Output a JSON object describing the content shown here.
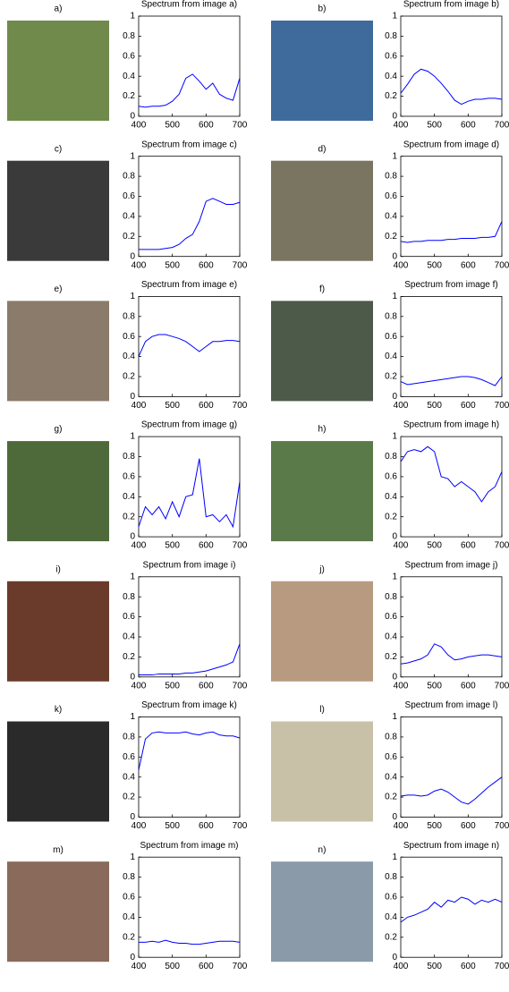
{
  "image_labels": [
    "a)",
    "b)",
    "c)",
    "d)",
    "e)",
    "f)",
    "g)",
    "h)",
    "i)",
    "j)",
    "k)",
    "l)",
    "m)",
    "n)"
  ],
  "chart_data": [
    {
      "type": "line",
      "title": "Spectrum from image a)",
      "x": [
        400,
        420,
        440,
        460,
        480,
        500,
        520,
        540,
        560,
        580,
        600,
        620,
        640,
        660,
        680,
        700
      ],
      "values": [
        0.1,
        0.09,
        0.1,
        0.1,
        0.11,
        0.15,
        0.22,
        0.38,
        0.42,
        0.35,
        0.27,
        0.33,
        0.22,
        0.18,
        0.16,
        0.38
      ],
      "color": "#0000ff",
      "xlim": [
        400,
        700
      ],
      "ylim": [
        0,
        1
      ],
      "xticks": [
        400,
        500,
        600,
        700
      ],
      "yticks": [
        0,
        0.2,
        0.4,
        0.6,
        0.8,
        1
      ]
    },
    {
      "type": "line",
      "title": "Spectrum from image b)",
      "x": [
        400,
        420,
        440,
        460,
        480,
        500,
        520,
        540,
        560,
        580,
        600,
        620,
        640,
        660,
        680,
        700
      ],
      "values": [
        0.23,
        0.32,
        0.42,
        0.47,
        0.45,
        0.4,
        0.33,
        0.25,
        0.16,
        0.12,
        0.15,
        0.17,
        0.17,
        0.18,
        0.18,
        0.17
      ],
      "color": "#0000ff",
      "xlim": [
        400,
        700
      ],
      "ylim": [
        0,
        1
      ],
      "xticks": [
        400,
        500,
        600,
        700
      ],
      "yticks": [
        0,
        0.2,
        0.4,
        0.6,
        0.8,
        1
      ]
    },
    {
      "type": "line",
      "title": "Spectrum from image c)",
      "x": [
        400,
        420,
        440,
        460,
        480,
        500,
        520,
        540,
        560,
        580,
        600,
        620,
        640,
        660,
        680,
        700
      ],
      "values": [
        0.07,
        0.07,
        0.07,
        0.07,
        0.08,
        0.09,
        0.12,
        0.18,
        0.22,
        0.35,
        0.55,
        0.58,
        0.55,
        0.52,
        0.52,
        0.54
      ],
      "color": "#0000ff",
      "xlim": [
        400,
        700
      ],
      "ylim": [
        0,
        1
      ],
      "xticks": [
        400,
        500,
        600,
        700
      ],
      "yticks": [
        0,
        0.2,
        0.4,
        0.6,
        0.8,
        1
      ]
    },
    {
      "type": "line",
      "title": "Spectrum from image d)",
      "x": [
        400,
        420,
        440,
        460,
        480,
        500,
        520,
        540,
        560,
        580,
        600,
        620,
        640,
        660,
        680,
        700
      ],
      "values": [
        0.15,
        0.14,
        0.15,
        0.15,
        0.16,
        0.16,
        0.16,
        0.17,
        0.17,
        0.18,
        0.18,
        0.18,
        0.19,
        0.19,
        0.2,
        0.35
      ],
      "color": "#0000ff",
      "xlim": [
        400,
        700
      ],
      "ylim": [
        0,
        1
      ],
      "xticks": [
        400,
        500,
        600,
        700
      ],
      "yticks": [
        0,
        0.2,
        0.4,
        0.6,
        0.8,
        1
      ]
    },
    {
      "type": "line",
      "title": "Spectrum from image e)",
      "x": [
        400,
        420,
        440,
        460,
        480,
        500,
        520,
        540,
        560,
        580,
        600,
        620,
        640,
        660,
        680,
        700
      ],
      "values": [
        0.4,
        0.55,
        0.6,
        0.62,
        0.62,
        0.6,
        0.58,
        0.55,
        0.5,
        0.45,
        0.5,
        0.55,
        0.55,
        0.56,
        0.56,
        0.55
      ],
      "color": "#0000ff",
      "xlim": [
        400,
        700
      ],
      "ylim": [
        0,
        1
      ],
      "xticks": [
        400,
        500,
        600,
        700
      ],
      "yticks": [
        0,
        0.2,
        0.4,
        0.6,
        0.8,
        1
      ]
    },
    {
      "type": "line",
      "title": "Spectrum from image f)",
      "x": [
        400,
        420,
        440,
        460,
        480,
        500,
        520,
        540,
        560,
        580,
        600,
        620,
        640,
        660,
        680,
        700
      ],
      "values": [
        0.15,
        0.12,
        0.13,
        0.14,
        0.15,
        0.16,
        0.17,
        0.18,
        0.19,
        0.2,
        0.2,
        0.19,
        0.17,
        0.14,
        0.11,
        0.2
      ],
      "color": "#0000ff",
      "xlim": [
        400,
        700
      ],
      "ylim": [
        0,
        1
      ],
      "xticks": [
        400,
        500,
        600,
        700
      ],
      "yticks": [
        0,
        0.2,
        0.4,
        0.6,
        0.8,
        1
      ]
    },
    {
      "type": "line",
      "title": "Spectrum from image g)",
      "x": [
        400,
        420,
        440,
        460,
        480,
        500,
        520,
        540,
        560,
        580,
        600,
        620,
        640,
        660,
        680,
        700
      ],
      "values": [
        0.1,
        0.3,
        0.22,
        0.3,
        0.18,
        0.35,
        0.2,
        0.4,
        0.42,
        0.78,
        0.2,
        0.22,
        0.15,
        0.22,
        0.1,
        0.55
      ],
      "color": "#0000ff",
      "xlim": [
        400,
        700
      ],
      "ylim": [
        0,
        1
      ],
      "xticks": [
        400,
        500,
        600,
        700
      ],
      "yticks": [
        0,
        0.2,
        0.4,
        0.6,
        0.8,
        1
      ]
    },
    {
      "type": "line",
      "title": "Spectrum from image h)",
      "x": [
        400,
        420,
        440,
        460,
        480,
        500,
        520,
        540,
        560,
        580,
        600,
        620,
        640,
        660,
        680,
        700
      ],
      "values": [
        0.75,
        0.85,
        0.87,
        0.85,
        0.9,
        0.85,
        0.6,
        0.58,
        0.5,
        0.55,
        0.5,
        0.45,
        0.35,
        0.45,
        0.5,
        0.65
      ],
      "color": "#0000ff",
      "xlim": [
        400,
        700
      ],
      "ylim": [
        0,
        1
      ],
      "xticks": [
        400,
        500,
        600,
        700
      ],
      "yticks": [
        0,
        0.2,
        0.4,
        0.6,
        0.8,
        1
      ]
    },
    {
      "type": "line",
      "title": "Spectrum from image i)",
      "x": [
        400,
        420,
        440,
        460,
        480,
        500,
        520,
        540,
        560,
        580,
        600,
        620,
        640,
        660,
        680,
        700
      ],
      "values": [
        0.02,
        0.02,
        0.02,
        0.03,
        0.03,
        0.03,
        0.03,
        0.04,
        0.04,
        0.05,
        0.06,
        0.08,
        0.1,
        0.12,
        0.15,
        0.33
      ],
      "color": "#0000ff",
      "xlim": [
        400,
        700
      ],
      "ylim": [
        0,
        1
      ],
      "xticks": [
        400,
        500,
        600,
        700
      ],
      "yticks": [
        0,
        0.2,
        0.4,
        0.6,
        0.8,
        1
      ]
    },
    {
      "type": "line",
      "title": "Spectrum from image j)",
      "x": [
        400,
        420,
        440,
        460,
        480,
        500,
        520,
        540,
        560,
        580,
        600,
        620,
        640,
        660,
        680,
        700
      ],
      "values": [
        0.13,
        0.14,
        0.16,
        0.18,
        0.22,
        0.33,
        0.3,
        0.22,
        0.17,
        0.18,
        0.2,
        0.21,
        0.22,
        0.22,
        0.21,
        0.2
      ],
      "color": "#0000ff",
      "xlim": [
        400,
        700
      ],
      "ylim": [
        0,
        1
      ],
      "xticks": [
        400,
        500,
        600,
        700
      ],
      "yticks": [
        0,
        0.2,
        0.4,
        0.6,
        0.8,
        1
      ]
    },
    {
      "type": "line",
      "title": "Spectrum from image k)",
      "x": [
        400,
        420,
        440,
        460,
        480,
        500,
        520,
        540,
        560,
        580,
        600,
        620,
        640,
        660,
        680,
        700
      ],
      "values": [
        0.47,
        0.78,
        0.84,
        0.85,
        0.84,
        0.84,
        0.84,
        0.85,
        0.83,
        0.82,
        0.84,
        0.85,
        0.82,
        0.81,
        0.81,
        0.79
      ],
      "color": "#0000ff",
      "xlim": [
        400,
        700
      ],
      "ylim": [
        0,
        1
      ],
      "xticks": [
        400,
        500,
        600,
        700
      ],
      "yticks": [
        0,
        0.2,
        0.4,
        0.6,
        0.8,
        1
      ]
    },
    {
      "type": "line",
      "title": "Spectrum from image l)",
      "x": [
        400,
        420,
        440,
        460,
        480,
        500,
        520,
        540,
        560,
        580,
        600,
        620,
        640,
        660,
        680,
        700
      ],
      "values": [
        0.21,
        0.22,
        0.22,
        0.21,
        0.22,
        0.26,
        0.28,
        0.25,
        0.2,
        0.15,
        0.13,
        0.18,
        0.24,
        0.3,
        0.35,
        0.4
      ],
      "color": "#0000ff",
      "xlim": [
        400,
        700
      ],
      "ylim": [
        0,
        1
      ],
      "xticks": [
        400,
        500,
        600,
        700
      ],
      "yticks": [
        0,
        0.2,
        0.4,
        0.6,
        0.8,
        1
      ]
    },
    {
      "type": "line",
      "title": "Spectrum from image m)",
      "x": [
        400,
        420,
        440,
        460,
        480,
        500,
        520,
        540,
        560,
        580,
        600,
        620,
        640,
        660,
        680,
        700
      ],
      "values": [
        0.15,
        0.15,
        0.16,
        0.15,
        0.17,
        0.15,
        0.14,
        0.14,
        0.13,
        0.13,
        0.14,
        0.15,
        0.16,
        0.16,
        0.16,
        0.15
      ],
      "color": "#0000ff",
      "xlim": [
        400,
        700
      ],
      "ylim": [
        0,
        1
      ],
      "xticks": [
        400,
        500,
        600,
        700
      ],
      "yticks": [
        0,
        0.2,
        0.4,
        0.6,
        0.8,
        1
      ]
    },
    {
      "type": "line",
      "title": "Spectrum from image n)",
      "x": [
        400,
        420,
        440,
        460,
        480,
        500,
        520,
        540,
        560,
        580,
        600,
        620,
        640,
        660,
        680,
        700
      ],
      "values": [
        0.35,
        0.4,
        0.42,
        0.45,
        0.48,
        0.55,
        0.5,
        0.57,
        0.55,
        0.6,
        0.58,
        0.53,
        0.57,
        0.55,
        0.58,
        0.55
      ],
      "color": "#0000ff",
      "xlim": [
        400,
        700
      ],
      "ylim": [
        0,
        1
      ],
      "xticks": [
        400,
        500,
        600,
        700
      ],
      "yticks": [
        0,
        0.2,
        0.4,
        0.6,
        0.8,
        1
      ]
    }
  ]
}
